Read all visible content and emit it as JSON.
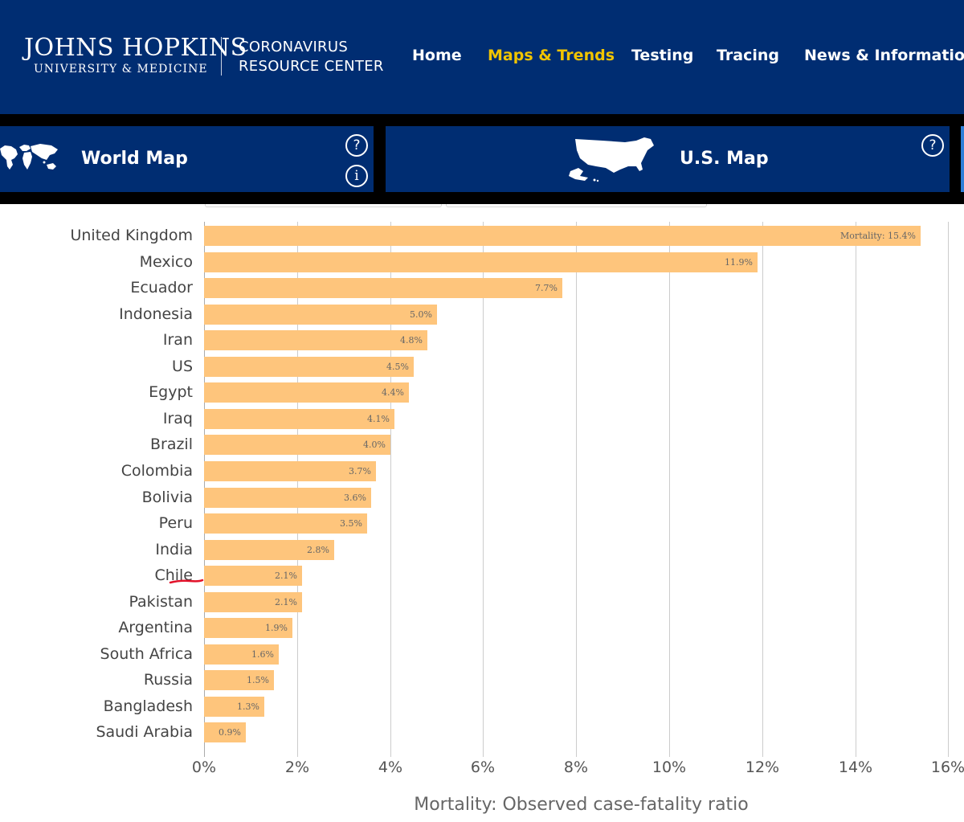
{
  "header": {
    "logo_line1": "JOHNS HOPKINS",
    "logo_line2": "UNIVERSITY & MEDICINE",
    "site_line1": "CORONAVIRUS",
    "site_line2": "RESOURCE CENTER",
    "nav": [
      {
        "label": "Home",
        "active": false
      },
      {
        "label": "Maps & Trends",
        "active": true
      },
      {
        "label": "Testing",
        "active": false
      },
      {
        "label": "Tracing",
        "active": false
      },
      {
        "label": "News & Information",
        "active": false
      }
    ]
  },
  "tabs": {
    "world": {
      "label": "World Map",
      "icon": "world-map-icon",
      "help": "?",
      "info": "i"
    },
    "us": {
      "label": "U.S. Map",
      "icon": "us-map-icon",
      "help": "?"
    }
  },
  "colors": {
    "navy": "#002d72",
    "accent": "#f1c400",
    "bar": "#fec57c",
    "annotation": "#e3122a"
  },
  "chart_data": {
    "type": "bar",
    "orientation": "horizontal",
    "categories": [
      "United Kingdom",
      "Mexico",
      "Ecuador",
      "Indonesia",
      "Iran",
      "US",
      "Egypt",
      "Iraq",
      "Brazil",
      "Colombia",
      "Bolivia",
      "Peru",
      "India",
      "Chile",
      "Pakistan",
      "Argentina",
      "South Africa",
      "Russia",
      "Bangladesh",
      "Saudi Arabia"
    ],
    "values": [
      15.4,
      11.9,
      7.7,
      5.0,
      4.8,
      4.5,
      4.4,
      4.1,
      4.0,
      3.7,
      3.6,
      3.5,
      2.8,
      2.1,
      2.1,
      1.9,
      1.6,
      1.5,
      1.3,
      0.9
    ],
    "value_labels": [
      "Mortality: 15.4%",
      "11.9%",
      "7.7%",
      "5.0%",
      "4.8%",
      "4.5%",
      "4.4%",
      "4.1%",
      "4.0%",
      "3.7%",
      "3.6%",
      "3.5%",
      "2.8%",
      "2.1%",
      "2.1%",
      "1.9%",
      "1.6%",
      "1.5%",
      "1.3%",
      "0.9%"
    ],
    "xticks": [
      "0%",
      "2%",
      "4%",
      "6%",
      "8%",
      "10%",
      "12%",
      "14%",
      "16%"
    ],
    "xlim": [
      0,
      16
    ],
    "xlabel": "Mortality: Observed case-fatality ratio",
    "ylabel": "",
    "title": "",
    "grid": true,
    "highlighted_category": "US"
  }
}
